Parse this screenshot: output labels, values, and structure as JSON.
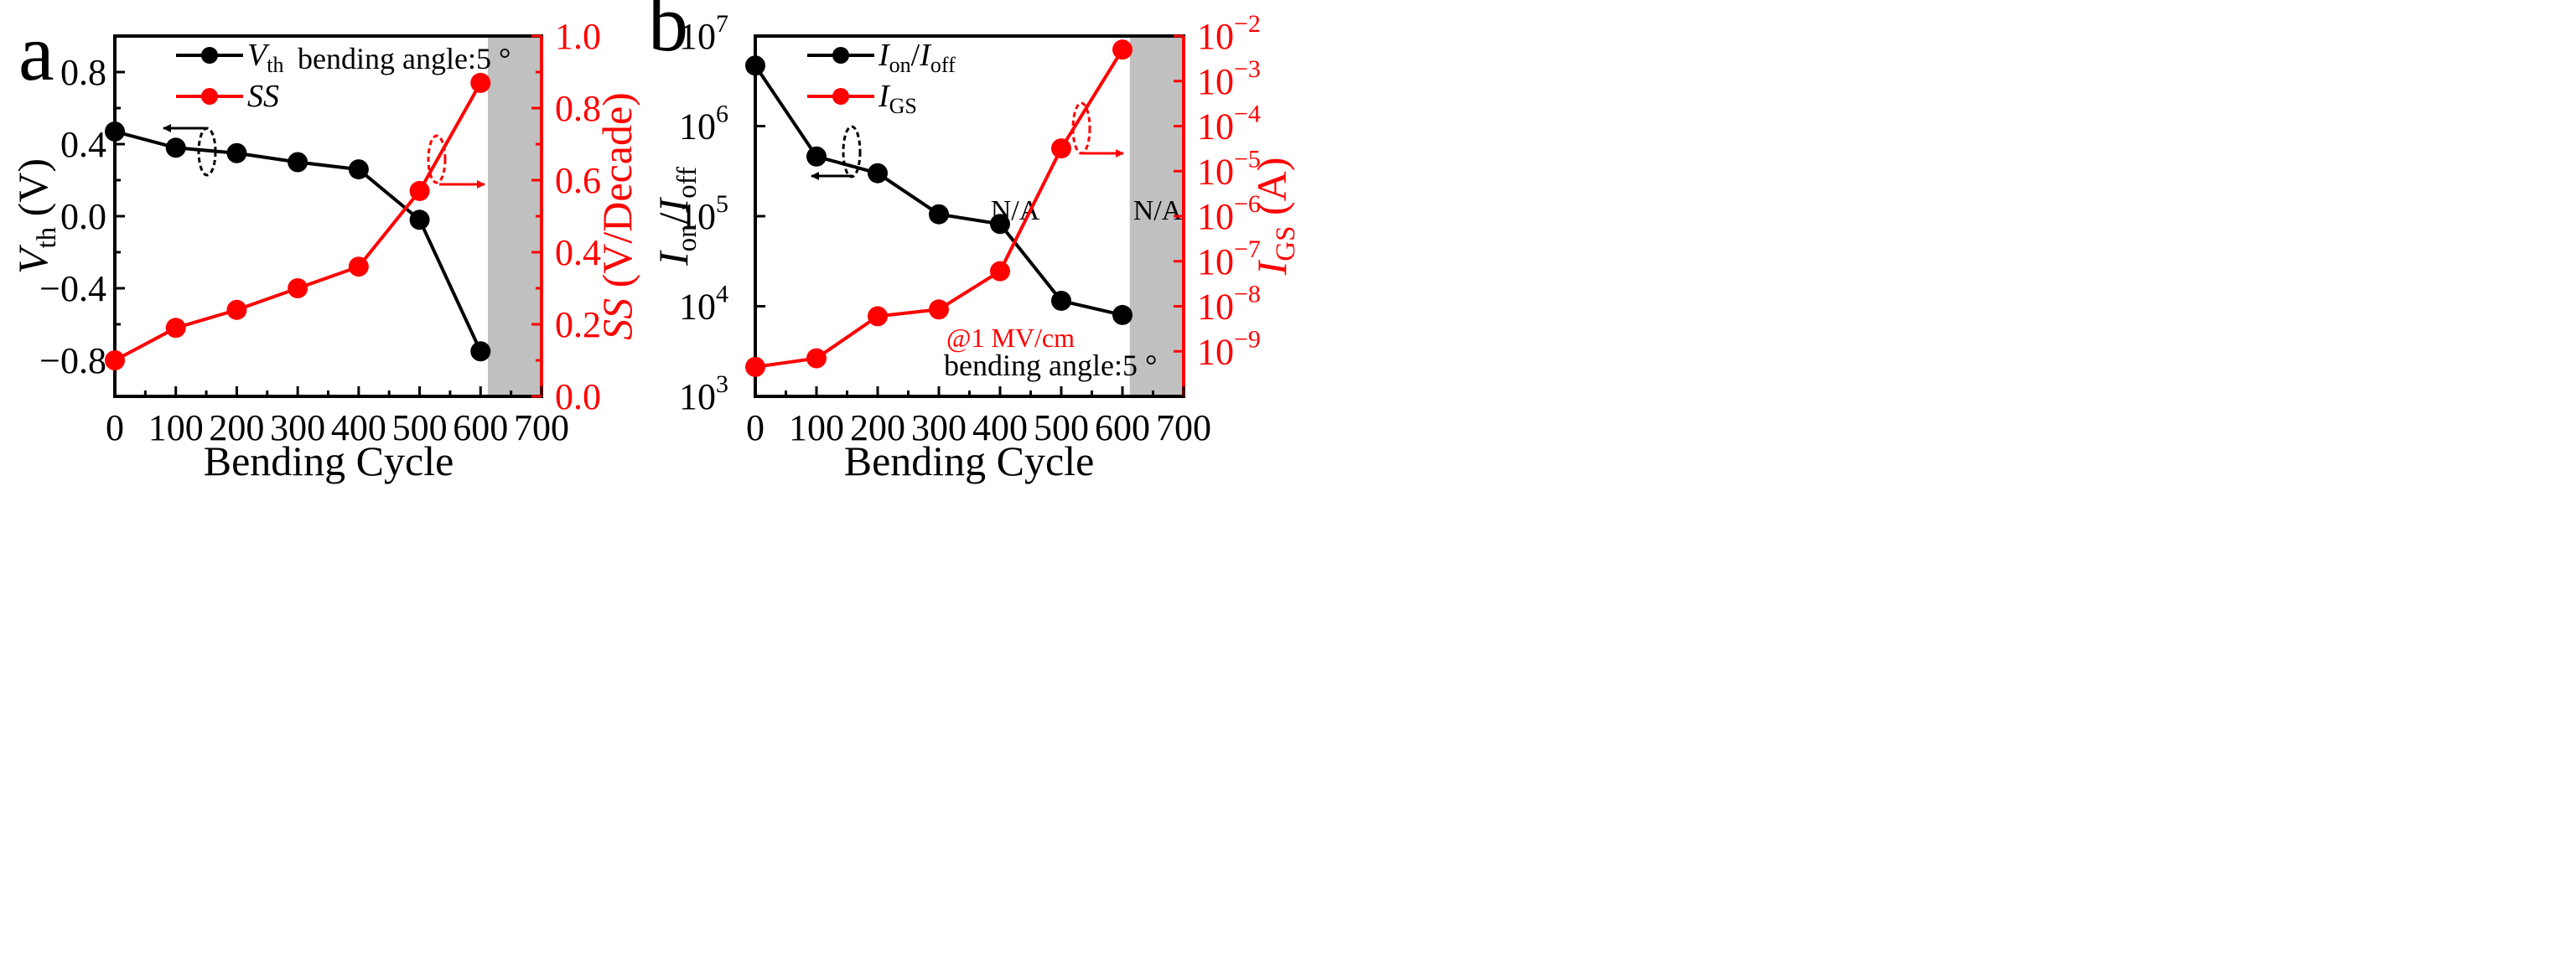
{
  "colors": {
    "black": "#000000",
    "red": "#ff0000",
    "na_fill": "#c0c0c0"
  },
  "chart_data": [
    {
      "panel": "a",
      "type": "line",
      "xlabel": "Bending Cycle",
      "ylabel_left": {
        "sym": "V",
        "sub": "th",
        "unit": " (V)"
      },
      "ylabel_right": {
        "sym": "SS",
        "unit": " (V/Decade)"
      },
      "xlim": [
        0,
        700
      ],
      "ylim_left": [
        -1.0,
        1.0
      ],
      "ylim_right": [
        0.0,
        1.0
      ],
      "x_ticks": [
        "0",
        "100",
        "200",
        "300",
        "400",
        "500",
        "600",
        "700"
      ],
      "y_left_ticks": [
        "−0.8",
        "−0.4",
        "0.0",
        "0.4",
        "0.8"
      ],
      "y_left_tick_values": [
        -0.8,
        -0.4,
        0.0,
        0.4,
        0.8
      ],
      "y_right_ticks": [
        "0.0",
        "0.2",
        "0.4",
        "0.6",
        "0.8",
        "1.0"
      ],
      "y_right_tick_values": [
        0.0,
        0.2,
        0.4,
        0.6,
        0.8,
        1.0
      ],
      "x": [
        0,
        100,
        200,
        300,
        400,
        500,
        600
      ],
      "series": [
        {
          "name": "Vth",
          "axis": "left",
          "color": "#000000",
          "values": [
            0.47,
            0.38,
            0.35,
            0.3,
            0.26,
            -0.02,
            -0.75
          ]
        },
        {
          "name": "SS",
          "axis": "right",
          "color": "#ff0000",
          "values": [
            0.1,
            0.19,
            0.24,
            0.3,
            0.36,
            0.57,
            0.87
          ]
        }
      ],
      "legend": [
        {
          "sym": "V",
          "sub": "th",
          "color": "#000000"
        },
        {
          "sym": "SS",
          "sub": "",
          "color": "#ff0000"
        }
      ],
      "na_region": {
        "x_start": 612,
        "x_end": 700,
        "label": "N/A"
      },
      "annotations": {
        "bending_angle": "bending angle:5 °"
      }
    },
    {
      "panel": "b",
      "type": "line",
      "xlabel": "Bending Cycle",
      "ylabel_left": {
        "sym": "I",
        "sub": "on",
        "sym2": "I",
        "sub2": "off"
      },
      "ylabel_right": {
        "sym": "I",
        "sub": "GS",
        "unit": " (A)"
      },
      "xlim": [
        0,
        700
      ],
      "ylim_left_log10": [
        3,
        7
      ],
      "ylim_right_log10": [
        -10,
        -2
      ],
      "x_ticks": [
        "0",
        "100",
        "200",
        "300",
        "400",
        "500",
        "600",
        "700"
      ],
      "y_left_ticks": [
        "10",
        "10",
        "10",
        "10",
        "10"
      ],
      "y_left_exps": [
        "3",
        "4",
        "5",
        "6",
        "7"
      ],
      "y_left_tick_values": [
        3,
        4,
        5,
        6,
        7
      ],
      "y_right_ticks": [
        "10",
        "10",
        "10",
        "10",
        "10",
        "10",
        "10",
        "10"
      ],
      "y_right_exps": [
        "−9",
        "−8",
        "−7",
        "−6",
        "−5",
        "−4",
        "−3",
        "−2"
      ],
      "y_right_tick_values": [
        -9,
        -8,
        -7,
        -6,
        -5,
        -4,
        -3,
        -2
      ],
      "x": [
        0,
        100,
        200,
        300,
        400,
        500,
        600
      ],
      "series": [
        {
          "name": "Ion/Ioff",
          "axis": "left",
          "color": "#000000",
          "values": [
            4700000,
            460000,
            300000,
            105000,
            82000,
            11500,
            8000
          ]
        },
        {
          "name": "IGS",
          "axis": "right",
          "color": "#ff0000",
          "values": [
            4.5e-10,
            7e-10,
            6e-09,
            8.5e-09,
            6e-08,
            3.2e-05,
            0.005
          ]
        }
      ],
      "legend": [
        {
          "sym": "I",
          "sub": "on",
          "sym2": "I",
          "sub2": "off",
          "color": "#000000"
        },
        {
          "sym": "I",
          "sub": "GS",
          "color": "#ff0000"
        }
      ],
      "na_region": {
        "x_start": 612,
        "x_end": 700,
        "label": "N/A"
      },
      "annotations": {
        "field": "@1 MV/cm",
        "bending_angle": "bending angle:5 °"
      }
    }
  ]
}
